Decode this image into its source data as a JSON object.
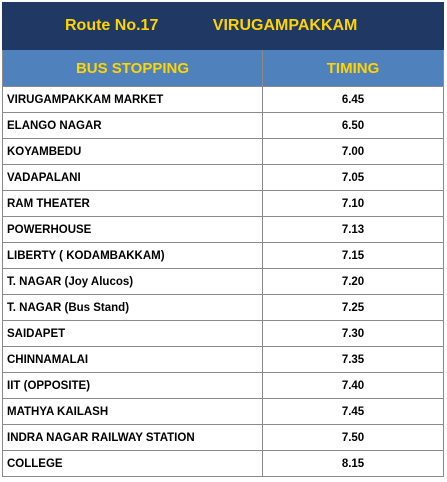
{
  "header": {
    "title": [
      "Route No.17",
      "VIRUGAMPAKKAM"
    ]
  },
  "table": {
    "columns": [
      "BUS STOPPING",
      "TIMING"
    ],
    "rows": [
      [
        "VIRUGAMPAKKAM MARKET",
        "6.45"
      ],
      [
        "ELANGO NAGAR",
        "6.50"
      ],
      [
        "KOYAMBEDU",
        "7.00"
      ],
      [
        "VADAPALANI",
        "7.05"
      ],
      [
        "RAM THEATER",
        "7.10"
      ],
      [
        "POWERHOUSE",
        "7.13"
      ],
      [
        "LIBERTY ( KODAMBAKKAM)",
        "7.15"
      ],
      [
        "T. NAGAR (Joy Alucos)",
        "7.20"
      ],
      [
        "T. NAGAR (Bus Stand)",
        "7.25"
      ],
      [
        "SAIDAPET",
        "7.30"
      ],
      [
        "CHINNAMALAI",
        "7.35"
      ],
      [
        "IIT (OPPOSITE)",
        "7.40"
      ],
      [
        "MATHYA KAILASH",
        "7.45"
      ],
      [
        "INDRA NAGAR RAILWAY STATION",
        "7.50"
      ],
      [
        "COLLEGE",
        "8.15"
      ]
    ]
  }
}
